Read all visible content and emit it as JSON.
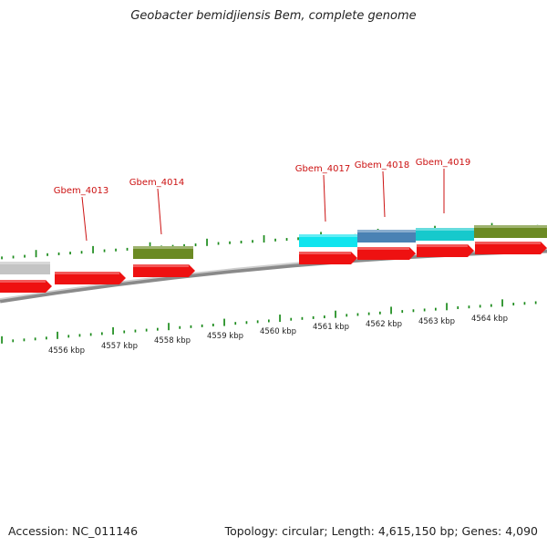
{
  "header": {
    "title": "Geobacter bemidjiensis Bem, complete genome"
  },
  "footer": {
    "accession": "Accession: NC_011146",
    "summary": "Topology: circular; Length: 4,615,150 bp; Genes: 4,090"
  },
  "colors": {
    "cds_red": "#ee1111",
    "olive": "#6b8a23",
    "gray": "#c4c4c4",
    "cyan": "#10e4ee",
    "steel_blue": "#4a82b4",
    "teal": "#16c9cc",
    "tick_green": "#1a8a1a",
    "label_red": "#cc1111"
  },
  "scale_labels": [
    "4556 kbp",
    "4557 kbp",
    "4558 kbp",
    "4559 kbp",
    "4560 kbp",
    "4561 kbp",
    "4562 kbp",
    "4563 kbp",
    "4564 kbp"
  ],
  "gene_labels": [
    "Gbem_4013",
    "Gbem_4014",
    "Gbem_4017",
    "Gbem_4018",
    "Gbem_4019"
  ]
}
